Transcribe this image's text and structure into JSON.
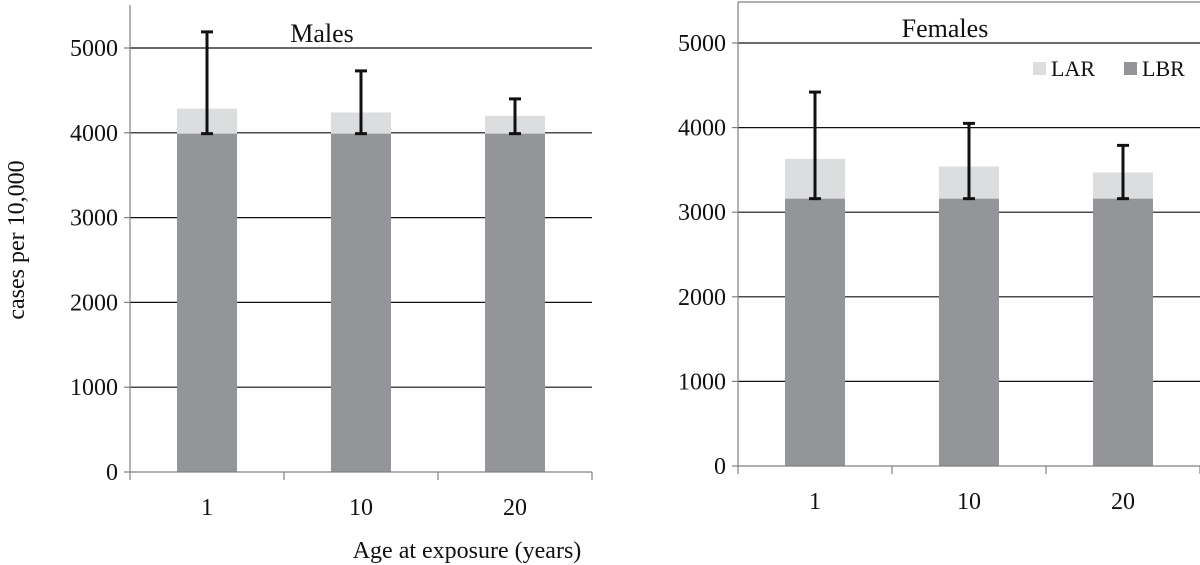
{
  "colors": {
    "lbr": "#939598",
    "lar": "#dcdddf",
    "error_bar": "#111111",
    "grid": "#111111",
    "frame": "#808080"
  },
  "chart_data": [
    {
      "type": "bar",
      "stacked": true,
      "title": "Males",
      "xlabel": "Age at exposure (years)",
      "ylabel": "cases per 10,000",
      "categories": [
        "1",
        "10",
        "20"
      ],
      "ylim": [
        0,
        5500
      ],
      "yticks": [
        "0",
        "1000",
        "2000",
        "3000",
        "4000",
        "5000"
      ],
      "grid": true,
      "legend": null,
      "series": [
        {
          "name": "LBR",
          "values": [
            3990,
            3990,
            3990
          ]
        },
        {
          "name": "LAR",
          "values": [
            295,
            250,
            210
          ]
        }
      ],
      "error_bars": {
        "low": [
          3990,
          3990,
          3990
        ],
        "high": [
          5190,
          4730,
          4400
        ]
      }
    },
    {
      "type": "bar",
      "stacked": true,
      "title": "Females",
      "xlabel": "",
      "ylabel": "",
      "categories": [
        "1",
        "10",
        "20"
      ],
      "ylim": [
        0,
        5500
      ],
      "yticks": [
        "0",
        "1000",
        "2000",
        "3000",
        "4000",
        "5000"
      ],
      "grid": true,
      "legend": "top-right",
      "series": [
        {
          "name": "LBR",
          "values": [
            3160,
            3160,
            3160
          ]
        },
        {
          "name": "LAR",
          "values": [
            470,
            380,
            310
          ]
        }
      ],
      "error_bars": {
        "low": [
          3160,
          3160,
          3160
        ],
        "high": [
          4420,
          4050,
          3790
        ]
      }
    }
  ]
}
